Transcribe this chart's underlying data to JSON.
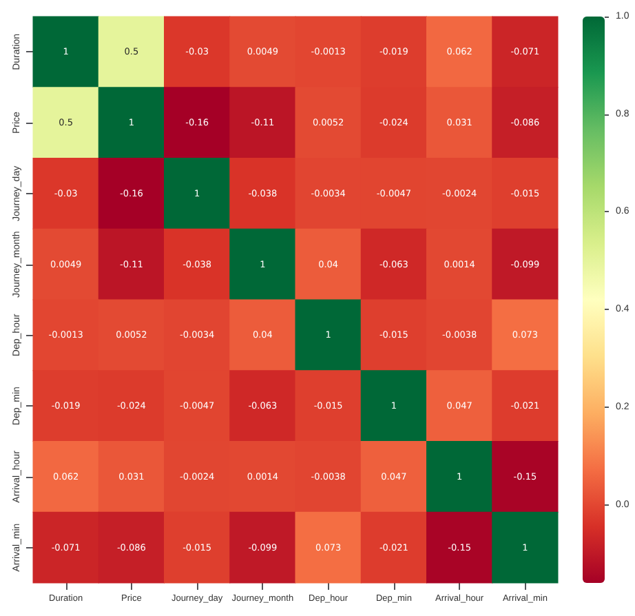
{
  "chart_data": {
    "type": "heatmap",
    "categories": [
      "Duration",
      "Price",
      "Journey_day",
      "Journey_month",
      "Dep_hour",
      "Dep_min",
      "Arrival_hour",
      "Arrival_min"
    ],
    "y_categories": [
      "Duration",
      "Price",
      "Journey_day",
      "Journey_month",
      "Dep_hour",
      "Dep_min",
      "Arrival_hour",
      "Arrival_min"
    ],
    "cells": [
      [
        1,
        0.5,
        -0.03,
        0.0049,
        -0.0013,
        -0.019,
        0.062,
        -0.071
      ],
      [
        0.5,
        1,
        -0.16,
        -0.11,
        0.0052,
        -0.024,
        0.031,
        -0.086
      ],
      [
        -0.03,
        -0.16,
        1,
        -0.038,
        -0.0034,
        -0.0047,
        -0.0024,
        -0.015
      ],
      [
        0.0049,
        -0.11,
        -0.038,
        1,
        0.04,
        -0.063,
        0.0014,
        -0.099
      ],
      [
        -0.0013,
        0.0052,
        -0.0034,
        0.04,
        1,
        -0.015,
        -0.0038,
        0.073
      ],
      [
        -0.019,
        -0.024,
        -0.0047,
        -0.063,
        -0.015,
        1,
        0.047,
        -0.021
      ],
      [
        0.062,
        0.031,
        -0.0024,
        0.0014,
        -0.0038,
        0.047,
        1,
        -0.15
      ],
      [
        -0.071,
        -0.086,
        -0.015,
        -0.099,
        0.073,
        -0.021,
        -0.15,
        1
      ]
    ],
    "clim": [
      -0.16,
      1
    ],
    "cticks": [
      {
        "value": 0,
        "label": "0.0"
      },
      {
        "value": 0.2,
        "label": "0.2"
      },
      {
        "value": 0.4,
        "label": "0.4"
      },
      {
        "value": 0.6,
        "label": "0.6"
      },
      {
        "value": 0.8,
        "label": "0.8"
      },
      {
        "value": 1,
        "label": "1.0"
      }
    ],
    "data_labels": true
  }
}
